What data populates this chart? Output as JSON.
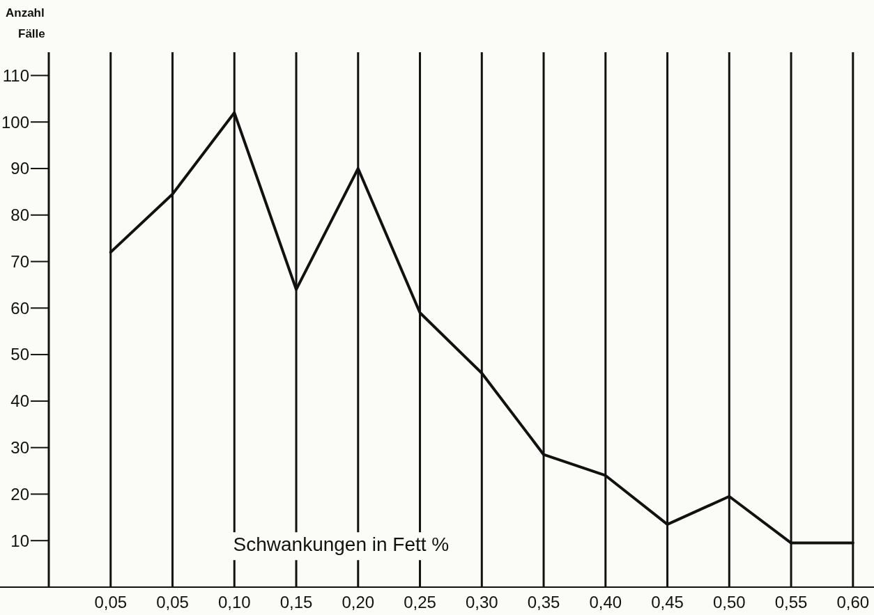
{
  "chart_data": {
    "type": "line",
    "ylabel": "Anzahl\nFälle",
    "xlabel": "Schwankungen in Fett %",
    "categories": [
      "0,05",
      "0,05",
      "0,10",
      "0,15",
      "0,20",
      "0,25",
      "0,30",
      "0,35",
      "0,40",
      "0,45",
      "0,50",
      "0,55",
      "0,60"
    ],
    "series": [
      {
        "color": "#111111",
        "values": [
          72,
          84.5,
          102,
          64,
          90,
          59,
          46,
          28.5,
          24,
          13.5,
          19.5,
          9.5,
          9.5
        ]
      }
    ],
    "ylim": [
      0,
      115
    ],
    "yticks": [
      10,
      20,
      30,
      40,
      50,
      60,
      70,
      80,
      90,
      100,
      110
    ],
    "grid": "x",
    "marker": "none",
    "line_style": "solid"
  }
}
